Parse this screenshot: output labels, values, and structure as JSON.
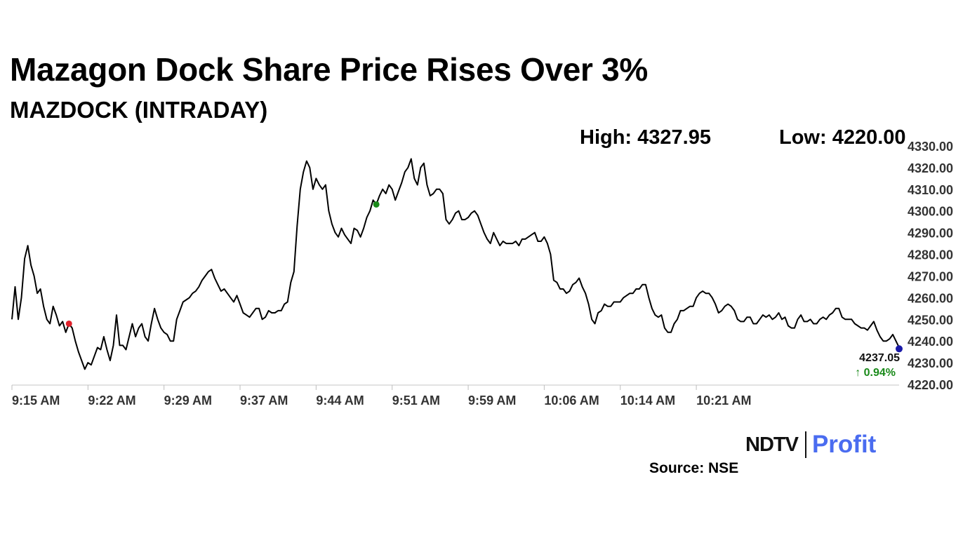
{
  "header": {
    "title": "Mazagon Dock Share Price Rises Over 3%",
    "subtitle": "MAZDOCK (INTRADAY)",
    "high_label": "High: 4327.95",
    "low_label": "Low: 4220.00"
  },
  "footer": {
    "logo_text": "NDTV | Profit",
    "logo_ndtv": "NDTV",
    "logo_profit": "Profit",
    "source": "Source: NSE"
  },
  "colors": {
    "line": "#000000",
    "low_marker": "#e0202a",
    "high_marker": "#1a8a1a",
    "last_marker": "#1a1aa8",
    "change_positive": "#1a8a1a",
    "axis": "#d8d8d8"
  },
  "chart_data": {
    "type": "line",
    "series": [
      {
        "values": [
          4250,
          4265,
          4250,
          4260,
          4278,
          4284,
          4275,
          4270,
          4262,
          4264,
          4256,
          4250,
          4248,
          4256,
          4252,
          4247,
          4249,
          4244,
          4248,
          4246,
          4240,
          4235,
          4231,
          4227,
          4230,
          4229,
          4233,
          4237,
          4236,
          4242,
          4236,
          4231,
          4238,
          4252,
          4238,
          4238,
          4236,
          4242,
          4248,
          4242,
          4246,
          4248,
          4242,
          4240,
          4248,
          4255,
          4250,
          4246,
          4244,
          4243,
          4240,
          4240,
          4250,
          4254,
          4258,
          4259,
          4260,
          4262,
          4263,
          4265,
          4268,
          4270,
          4272,
          4273,
          4269,
          4266,
          4263,
          4264,
          4262,
          4260,
          4258,
          4261,
          4257,
          4253,
          4252,
          4251,
          4253,
          4255,
          4255,
          4250,
          4251,
          4254,
          4253,
          4253,
          4254,
          4254,
          4257,
          4258,
          4267,
          4272,
          4293,
          4310,
          4318,
          4323,
          4320,
          4310,
          4315,
          4312,
          4310,
          4312,
          4300,
          4294,
          4290,
          4288,
          4292,
          4289,
          4287,
          4285,
          4292,
          4291,
          4288,
          4292,
          4297,
          4300,
          4305,
          4303,
          4307,
          4310,
          4308,
          4312,
          4310,
          4305,
          4309,
          4313,
          4318,
          4320,
          4324,
          4315,
          4312,
          4320,
          4322,
          4312,
          4307,
          4308,
          4310,
          4310,
          4308,
          4296,
          4294,
          4296,
          4299,
          4300,
          4296,
          4296,
          4297,
          4299,
          4300,
          4298,
          4294,
          4290,
          4287,
          4285,
          4290,
          4287,
          4284,
          4286,
          4285,
          4285,
          4285,
          4286,
          4284,
          4287,
          4287,
          4288,
          4289,
          4290,
          4286,
          4286,
          4288,
          4285,
          4280,
          4268,
          4267,
          4264,
          4264,
          4262,
          4263,
          4266,
          4267,
          4269,
          4265,
          4262,
          4257,
          4250,
          4248,
          4253,
          4254,
          4257,
          4256,
          4256,
          4258,
          4258,
          4258,
          4260,
          4261,
          4262,
          4262,
          4264,
          4264,
          4266,
          4266,
          4260,
          4255,
          4252,
          4251,
          4252,
          4246,
          4244,
          4244,
          4248,
          4250,
          4254,
          4254,
          4255,
          4256,
          4256,
          4260,
          4262,
          4263,
          4262,
          4262,
          4260,
          4257,
          4253,
          4254,
          4256,
          4257,
          4256,
          4254,
          4250,
          4249,
          4249,
          4251,
          4251,
          4248,
          4248,
          4250,
          4252,
          4251,
          4252,
          4250,
          4251,
          4253,
          4250,
          4251,
          4247,
          4246,
          4246,
          4250,
          4252,
          4249,
          4249,
          4250,
          4248,
          4248,
          4250,
          4251,
          4250,
          4252,
          4253,
          4255,
          4255,
          4251,
          4250,
          4250,
          4250,
          4248,
          4247,
          4246,
          4246,
          4245,
          4247,
          4249,
          4245,
          4242,
          4240,
          4240,
          4241,
          4243,
          4240,
          4237.05
        ],
        "color": "#000000"
      }
    ],
    "x_tick_labels": [
      "9:15 AM",
      "9:22 AM",
      "9:29 AM",
      "9:37 AM",
      "9:44 AM",
      "9:51 AM",
      "9:59 AM",
      "10:06 AM",
      "10:14 AM",
      "10:21 AM"
    ],
    "x_tick_indices": [
      0,
      24,
      48,
      72,
      96,
      120,
      144,
      168,
      192,
      216
    ],
    "y_tick_labels": [
      "4330.00",
      "4320.00",
      "4310.00",
      "4300.00",
      "4290.00",
      "4280.00",
      "4270.00",
      "4260.00",
      "4250.00",
      "4240.00",
      "4230.00",
      "4220.00"
    ],
    "ylim": [
      4220,
      4330
    ],
    "high": {
      "index": 115,
      "value": 4327.95
    },
    "low": {
      "index": 18,
      "value": 4220.0
    },
    "last_value_label": "4237.05",
    "change_label": "↑ 0.94%",
    "grid": false,
    "legend": "none"
  }
}
